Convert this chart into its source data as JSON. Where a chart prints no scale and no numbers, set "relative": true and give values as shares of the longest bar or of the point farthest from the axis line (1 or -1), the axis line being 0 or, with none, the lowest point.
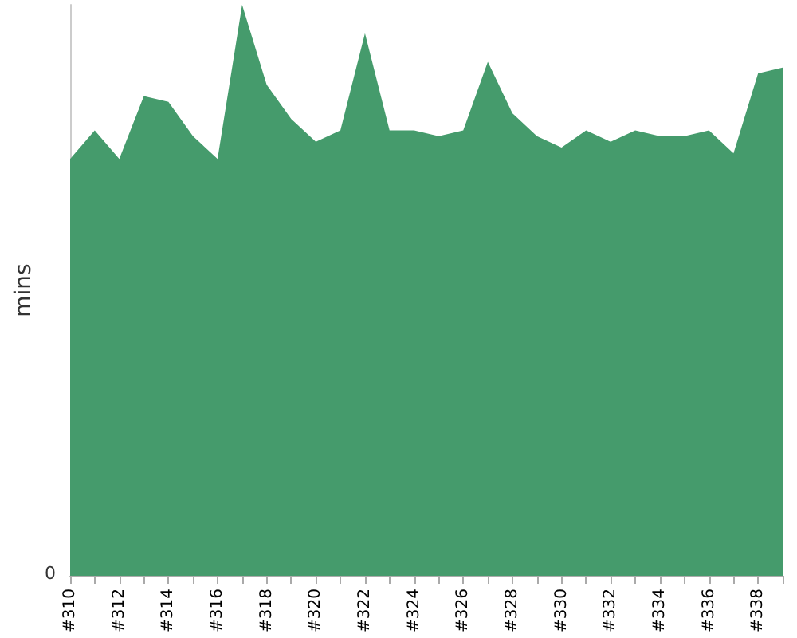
{
  "chart_data": {
    "type": "area",
    "ylabel": "mins",
    "relative": true,
    "categories": [
      "#310",
      null,
      "#312",
      null,
      "#314",
      null,
      "#316",
      null,
      "#318",
      null,
      "#320",
      null,
      "#322",
      null,
      "#324",
      null,
      "#326",
      null,
      "#328",
      null,
      "#330",
      null,
      "#332",
      null,
      "#334",
      null,
      "#336",
      null,
      "#338",
      null
    ],
    "series": [
      {
        "color": "#459b6c",
        "values": [
          0.73,
          0.78,
          0.73,
          0.84,
          0.83,
          0.77,
          0.73,
          1,
          0.86,
          0.8,
          0.76,
          0.78,
          0.95,
          0.78,
          0.78,
          0.77,
          0.78,
          0.9,
          0.81,
          0.77,
          0.75,
          0.78,
          0.76,
          0.78,
          0.77,
          0.77,
          0.78,
          0.74,
          0.88,
          0.89
        ]
      }
    ],
    "annotations": [
      "0"
    ]
  }
}
